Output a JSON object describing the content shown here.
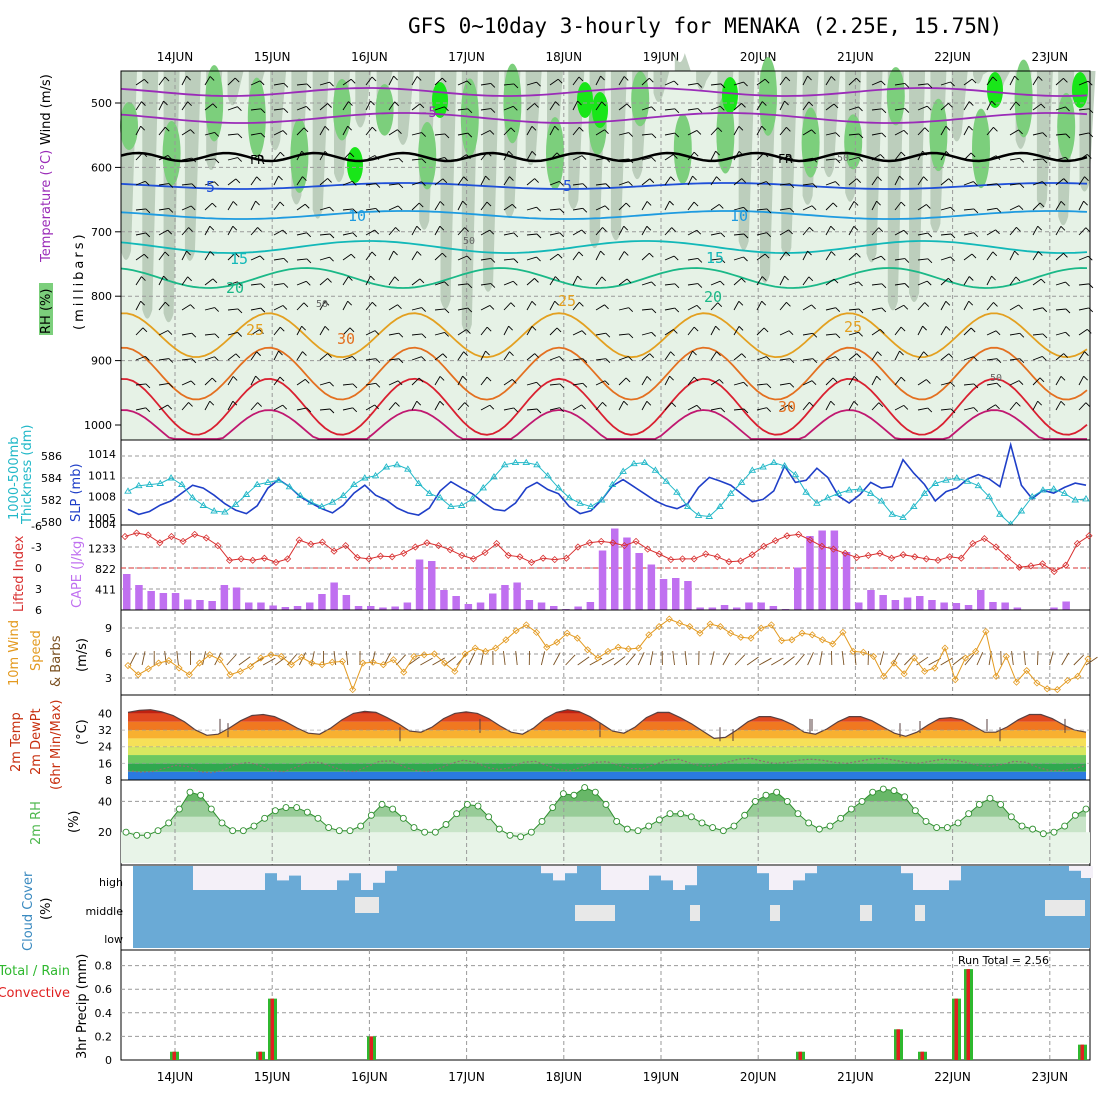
{
  "title": "GFS 0~10day 3-hourly for MENAKA (2.25E, 15.75N)",
  "dates": [
    "14JUN",
    "15JUN",
    "16JUN",
    "17JUN",
    "18JUN",
    "19JUN",
    "20JUN",
    "21JUN",
    "22JUN",
    "23JUN"
  ],
  "colors": {
    "rh_green": "#7ccf7c",
    "rh_bright": "#19e619",
    "rh_gray": "#b4c8b4",
    "rh_light": "#e6f2e6",
    "temp_purple": "#9a2bb8",
    "freezing": "#000000",
    "t5": "#1f4fd8",
    "t10": "#1e9be0",
    "t15": "#12b8b8",
    "t20": "#1ab887",
    "t25": "#e3a020",
    "t30": "#e37020",
    "t35": "#d92030",
    "slp": "#1f3fc8",
    "thickness": "#22b8c8",
    "lifted": "#d83030",
    "cape": "#c070f0",
    "wind": "#e39a20",
    "barb": "#7a5020",
    "temp_fill": "#c83010",
    "dewpt_fill": "#2a7ae0",
    "rh2m": "#4fb84f",
    "cloud": "#6aaad6",
    "cloud_clear": "#f4f0f8",
    "precip_total": "#2fb82f",
    "precip_conv": "#e02020"
  },
  "panels": {
    "upper": {
      "ylabel_wind": "Wind (m/s)",
      "ylabel_temp": "Temperature (°C)",
      "ylabel_rh": "RH (%)",
      "ylabel_mb": "(millibars)",
      "yticks": [
        "500",
        "600",
        "700",
        "800",
        "900",
        "1000"
      ],
      "labels": {
        "m5a": "-5",
        "fr1": "FR",
        "fr2": "FR",
        "l5a": "5",
        "l5b": "5",
        "l10a": "10",
        "l10b": "10",
        "l15a": "15",
        "l15b": "15",
        "l20a": "20",
        "l20b": "20",
        "l25a": "25",
        "l25b": "25",
        "l25c": "25",
        "l30a": "30",
        "l30b": "30",
        "r50a": "50",
        "r50b": "50",
        "r50c": "50",
        "r50d": "50"
      }
    },
    "slp": {
      "ylabel_thick": "Thickness (dm)",
      "ylabel_thick2": "1000-500mb",
      "ylabel_slp": "SLP (mb)",
      "left_ticks": [
        "586",
        "584",
        "582",
        "580"
      ],
      "right_ticks": [
        "1014",
        "1011",
        "1008",
        "1005",
        "1004"
      ]
    },
    "cape": {
      "ylabel_li": "Lifted Index",
      "ylabel_cape": "CAPE (J/kg)",
      "left_ticks": [
        "-6",
        "-3",
        "0",
        "3",
        "6"
      ],
      "right_ticks": [
        "1233",
        "822",
        "411"
      ]
    },
    "wind": {
      "ylabel_a": "10m Wind",
      "ylabel_b": "Speed",
      "ylabel_c": "& Barbs",
      "ylabel_unit": "(m/s)",
      "ticks": [
        "9",
        "6",
        "3"
      ]
    },
    "temp": {
      "ylabel_a": "2m Temp",
      "ylabel_b": "2m DewPt",
      "ylabel_c": "(6hr Min/Max)",
      "ylabel_unit": "(°C)",
      "ticks": [
        "40",
        "32",
        "24",
        "16",
        "8"
      ]
    },
    "rh": {
      "ylabel": "2m RH",
      "ylabel_unit": "(%)",
      "ticks": [
        "40",
        "20"
      ]
    },
    "cloud": {
      "ylabel": "Cloud Cover",
      "ylabel_unit": "(%)",
      "levels": [
        "high",
        "middle",
        "low"
      ]
    },
    "precip": {
      "ylabel_a": "3hr Precip (mm)",
      "ylabel_b": "Total / Rain",
      "ylabel_c": "Convective",
      "run_total": "Run Total = 2.56",
      "ticks": [
        "0.8",
        "0.6",
        "0.4",
        "0.2",
        "0"
      ]
    }
  },
  "chart_data": [
    {
      "type": "line",
      "title": "SLP (mb) and 1000-500mb Thickness (dm)",
      "series": [
        {
          "name": "SLP (mb)",
          "values": [
            1006.2,
            1005.5,
            1005.9,
            1006.8,
            1007.4,
            1008.5,
            1009.6,
            1009.2,
            1008.2,
            1007.0,
            1006.1,
            1005.6,
            1006.7,
            1009.2,
            1010.4,
            1009.4,
            1008.0,
            1007.1,
            1006.3,
            1005.7,
            1006.8,
            1008.5,
            1009.6,
            1008.2,
            1007.5,
            1006.4,
            1005.7,
            1005.4,
            1006.4,
            1008.8,
            1010.1,
            1009.2,
            1008.4,
            1007.2,
            1006.2,
            1006.0,
            1007.1,
            1009.2,
            1010.0,
            1009.0,
            1008.4,
            1006.6,
            1005.6,
            1006.0,
            1007.5,
            1009.5,
            1010.4,
            1009.4,
            1008.4,
            1007.4,
            1006.7,
            1006.3,
            1007.0,
            1009.3,
            1010.7,
            1010.2,
            1009.6,
            1008.4,
            1007.3,
            1007.6,
            1008.8,
            1012.3,
            1010.0,
            1010.3,
            1012.0,
            1010.7,
            1008.1,
            1007.1,
            1008.3,
            1010.0,
            1009.2,
            1009.4,
            1013.2,
            1011.3,
            1009.7,
            1007.4,
            1008.7,
            1009.2,
            1010.5,
            1011.1,
            1010.5,
            1009.4,
            1015.3,
            1009.6,
            1007.7,
            1008.9,
            1008.5,
            1009.3,
            1009.9,
            1009.6
          ]
        },
        {
          "name": "1000-500mb Thickness (dm)",
          "values": [
            582.8,
            583.3,
            583.4,
            583.5,
            584.0,
            583.4,
            582.2,
            581.5,
            581.0,
            580.9,
            581.6,
            582.5,
            583.4,
            583.6,
            583.8,
            583.2,
            582.4,
            581.8,
            581.4,
            581.8,
            582.4,
            583.4,
            584.0,
            584.2,
            585.0,
            585.2,
            584.8,
            583.5,
            582.6,
            582.2,
            581.4,
            581.5,
            582.1,
            583.1,
            584.1,
            585.2,
            585.4,
            585.4,
            585.2,
            584.2,
            583.1,
            582.2,
            581.7,
            581.4,
            582.0,
            583.4,
            584.6,
            585.3,
            585.4,
            584.7,
            583.7,
            582.7,
            581.4,
            580.6,
            580.5,
            581.4,
            582.6,
            583.6,
            584.7,
            585.0,
            585.4,
            585.1,
            584.3,
            582.7,
            581.7,
            582.2,
            582.6,
            582.9,
            583.0,
            582.6,
            581.9,
            580.7,
            580.4,
            581.4,
            582.6,
            583.5,
            583.8,
            584.0,
            583.7,
            583.3,
            582.3,
            580.7,
            579.8,
            581.0,
            582.3,
            582.9,
            583.0,
            582.6,
            582.0,
            582.1
          ]
        }
      ]
    },
    {
      "type": "bar",
      "title": "CAPE (J/kg) and Lifted Index",
      "series": [
        {
          "name": "CAPE (J/kg)",
          "values": [
            720,
            500,
            380,
            340,
            340,
            210,
            200,
            180,
            500,
            450,
            150,
            150,
            90,
            60,
            80,
            150,
            320,
            550,
            300,
            80,
            80,
            50,
            70,
            150,
            1010,
            980,
            400,
            280,
            120,
            150,
            330,
            500,
            550,
            200,
            150,
            80,
            20,
            70,
            160,
            1190,
            1630,
            1450,
            1140,
            910,
            620,
            640,
            580,
            50,
            50,
            100,
            50,
            150,
            150,
            80,
            20,
            850,
            1480,
            1590,
            1590,
            1160,
            150,
            400,
            300,
            200,
            250,
            280,
            200,
            150,
            140,
            100,
            400,
            160,
            150,
            50,
            10,
            10,
            50,
            170
          ]
        },
        {
          "name": "Lifted Index",
          "values": [
            -4.5,
            -5.0,
            -4.7,
            -3.6,
            -4.5,
            -3.8,
            -4.8,
            -4.3,
            -3.2,
            -1.1,
            -1.3,
            -1.1,
            -1.4,
            -0.8,
            -1.3,
            -4.0,
            -3.4,
            -3.7,
            -2.4,
            -3.2,
            -1.5,
            -1.3,
            -1.7,
            -1.6,
            -2.1,
            -3.0,
            -3.6,
            -3.2,
            -2.6,
            -1.8,
            -1.3,
            -2.2,
            -3.5,
            -1.8,
            -1.6,
            -0.8,
            -1.4,
            -1.2,
            -1.4,
            -3.0,
            -3.6,
            -3.8,
            -3.6,
            -3.2,
            -3.8,
            -2.7,
            -2.0,
            -1.2,
            -1.3,
            -1.3,
            -2.0,
            -1.6,
            -0.9,
            -1.0,
            -1.9,
            -3.1,
            -3.9,
            -4.6,
            -4.8,
            -4.0,
            -3.1,
            -2.7,
            -2.1,
            -1.5,
            -1.8,
            -2.1,
            -1.4,
            -1.9,
            -1.6,
            -1.3,
            -1.1,
            -1.6,
            -1.4,
            -3.5,
            -4.2,
            -3.0,
            -1.5,
            -0.1,
            -0.3,
            -0.6,
            0.5,
            -0.4,
            -3.5,
            -4.6
          ]
        }
      ]
    },
    {
      "type": "line",
      "title": "10m Wind Speed (m/s)",
      "series": [
        {
          "name": "10m Wind Speed",
          "values": [
            4.5,
            3.4,
            4.1,
            4.8,
            5.1,
            4.2,
            3.4,
            4.8,
            5.8,
            5.2,
            3.4,
            3.8,
            4.4,
            5.4,
            5.8,
            5.6,
            4.6,
            5.5,
            4.8,
            4.6,
            4.9,
            5.0,
            1.6,
            4.8,
            4.9,
            4.6,
            5.2,
            3.7,
            5.6,
            5.8,
            5.9,
            4.8,
            3.8,
            5.9,
            6.6,
            6.2,
            6.6,
            7.6,
            8.7,
            9.4,
            8.5,
            6.7,
            7.3,
            8.4,
            7.8,
            6.4,
            5.4,
            6.2,
            6.7,
            6.5,
            6.6,
            8.2,
            9.2,
            10.1,
            9.6,
            9.2,
            8.4,
            9.5,
            9.2,
            8.4,
            7.9,
            7.8,
            9.0,
            9.4,
            7.5,
            7.6,
            8.4,
            8.2,
            7.6,
            7.1,
            8.5,
            6.2,
            6.1,
            5.6,
            3.2,
            4.8,
            3.5,
            5.4,
            3.8,
            4.2,
            6.6,
            2.8,
            5.4,
            6.2,
            8.6,
            3.2,
            5.6,
            2.5,
            3.9,
            2.4,
            1.7,
            1.6,
            2.7,
            3.2,
            5.3
          ]
        }
      ]
    },
    {
      "type": "area",
      "title": "2m Temp and 2m DewPt (°C)",
      "series": [
        {
          "name": "2m Temp",
          "values": [
            40.5,
            41.5,
            41.8,
            40.8,
            39.0,
            36.0,
            32.0,
            29.5,
            30.0,
            33.0,
            36.5,
            39.0,
            39.5,
            38.5,
            36.0,
            33.0,
            30.5,
            30.0,
            33.0,
            37.0,
            40.0,
            41.0,
            40.5,
            38.0,
            35.0,
            31.5,
            31.0,
            33.5,
            37.5,
            40.0,
            40.8,
            40.0,
            37.5,
            34.0,
            31.0,
            30.0,
            33.0,
            37.5,
            40.5,
            41.8,
            41.0,
            38.5,
            35.0,
            31.5,
            30.5,
            33.5,
            38.0,
            40.5,
            40.5,
            38.0,
            35.0,
            31.5,
            28.0,
            28.5,
            32.0,
            36.0,
            38.5,
            38.5,
            37.0,
            34.5,
            31.0,
            30.0,
            32.5,
            36.0,
            38.5,
            38.5,
            36.5,
            33.5,
            30.5,
            29.0,
            31.0,
            34.5,
            37.5,
            38.0,
            37.0,
            34.0,
            31.0,
            31.0,
            33.5,
            37.0,
            39.5,
            39.5,
            37.5,
            34.5,
            32.0,
            31.0
          ]
        },
        {
          "name": "2m DewPt",
          "values": [
            12.5,
            11.8,
            12.0,
            13.5,
            15.0,
            14.5,
            12.0,
            11.5,
            12.8,
            15.5,
            16.5,
            15.0,
            12.5,
            12.0,
            14.0,
            16.5,
            16.5,
            14.5,
            12.5,
            12.0,
            14.5,
            17.0,
            17.2,
            14.5,
            12.5,
            12.0,
            13.5,
            16.0,
            17.5,
            16.5,
            14.0,
            13.0,
            14.0,
            16.5,
            17.0,
            15.0,
            13.0,
            12.5,
            14.5,
            16.5,
            16.8,
            15.0,
            13.5,
            13.5,
            15.5,
            17.5,
            18.0,
            16.0,
            14.5,
            15.0,
            16.5,
            18.0,
            18.5,
            17.0,
            16.0,
            16.5,
            17.5,
            18.0,
            17.5,
            16.5,
            16.0,
            17.0,
            18.0,
            18.5,
            17.5,
            16.5,
            16.0,
            17.0,
            18.0,
            17.5,
            16.5,
            15.0,
            14.5,
            15.5,
            17.0,
            16.5,
            14.0,
            12.5,
            12.5,
            13.5,
            15.0
          ]
        }
      ]
    },
    {
      "type": "line",
      "title": "2m RH (%)",
      "series": [
        {
          "name": "2m RH",
          "values": [
            20,
            18,
            18,
            21,
            26,
            35,
            46,
            44,
            35,
            26,
            21,
            21,
            24,
            29,
            34,
            36,
            36,
            33,
            29,
            23,
            21,
            21,
            24,
            31,
            38,
            35,
            29,
            23,
            20,
            20,
            25,
            32,
            38,
            37,
            30,
            22,
            18,
            17,
            20,
            27,
            36,
            45,
            44,
            49,
            46,
            38,
            27,
            22,
            21,
            24,
            28,
            32,
            32,
            30,
            26,
            23,
            21,
            24,
            31,
            40,
            44,
            46,
            40,
            32,
            26,
            22,
            24,
            29,
            35,
            40,
            46,
            48,
            47,
            43,
            34,
            27,
            23,
            23,
            26,
            32,
            38,
            42,
            38,
            30,
            24,
            22,
            19,
            20,
            24,
            31,
            35
          ]
        }
      ]
    },
    {
      "type": "bar",
      "title": "3hr Precip (mm)",
      "series": [
        {
          "name": "Total / Rain",
          "values": [
            0.07,
            0.07,
            0.52,
            0.2,
            0.07,
            0.26,
            0.07,
            0.52,
            0.77,
            0.13
          ]
        },
        {
          "name": "Convective",
          "values": [
            0.07,
            0.07,
            0.52,
            0.2,
            0.07,
            0.26,
            0.07,
            0.52,
            0.77,
            0.13
          ]
        }
      ],
      "categories": [
        "14JUN",
        "15JUN",
        "15JUN",
        "16JUN",
        "20JUN",
        "21JUN",
        "21JUN",
        "22JUN",
        "22JUN",
        "23JUN"
      ]
    }
  ]
}
